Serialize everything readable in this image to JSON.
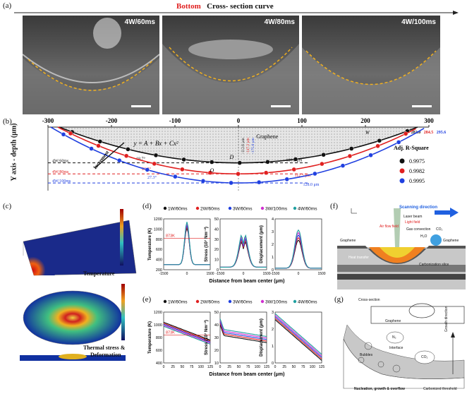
{
  "panel_a": {
    "label": "(a)",
    "title_bottom": "Bottom",
    "title_rest": "Cross- section curve",
    "images": [
      {
        "tag": "4W/60ms"
      },
      {
        "tag": "4W/80ms"
      },
      {
        "tag": "4W/100ms"
      }
    ]
  },
  "panel_b": {
    "label": "(b)",
    "ylabel": "Y axis - depth (μm)",
    "equation": "y = A + Bx + Cx²",
    "graphene": "Graphene",
    "increment": "Increment",
    "w_label": "W",
    "d_label": "D",
    "o_label": "O",
    "line_labels": [
      "4W/60ms",
      "4W/80ms",
      "4W/100ms"
    ],
    "angles": [
      "18.7°",
      "23.2°",
      "27.3°"
    ],
    "depth_labels": [
      "-112.6 μm",
      "-147.2 μm",
      "-175.8 μm"
    ],
    "widths": [
      "106.6 μm",
      "112.5 μm",
      "128.0 μm"
    ],
    "top_w": [
      "282.0",
      "284.5",
      "295.6"
    ],
    "legend_title": "Adj. R-Square",
    "legend_values": [
      "0.9975",
      "0.9982",
      "0.9995"
    ],
    "colors": [
      "#111111",
      "#e02020",
      "#2040e0"
    ]
  },
  "chart_data": {
    "type": "scatter",
    "title": "Cross- section curve",
    "xlabel": "",
    "ylabel": "Y axis - depth (μm)",
    "xlim": [
      -300,
      300
    ],
    "x_ticks": [
      "-300",
      "-200",
      "-100",
      "0",
      "100",
      "200",
      "300"
    ],
    "series": [
      {
        "name": "4W/60ms",
        "vertex_depth": -112.6,
        "half_width": 282.0
      },
      {
        "name": "4W/80ms",
        "vertex_depth": -147.2,
        "half_width": 284.5
      },
      {
        "name": "4W/100ms",
        "vertex_depth": -175.8,
        "half_width": 295.6
      }
    ]
  },
  "panel_c": {
    "label": "(c)",
    "temperature": "Temperature",
    "stress": "Thermal stress &",
    "deformation": "Deformation"
  },
  "panel_d": {
    "label": "(d)",
    "legend": [
      "1W/60ms",
      "2W/60ms",
      "3W/60ms",
      "3W/100ms",
      "4W/60ms"
    ],
    "legend_colors": [
      "#111111",
      "#e02020",
      "#2040e0",
      "#d030d0",
      "#20a0a0"
    ],
    "ylabels": [
      "Temperature (K)",
      "Stress (10⁷ Nm⁻²)",
      "Displacement (μm)"
    ],
    "xlabel": "Distance from beam center (μm)",
    "marker": "873K",
    "ticks_temp": [
      "1200",
      "1000",
      "800",
      "600",
      "400",
      "200"
    ],
    "ticks_stress": [
      "50",
      "40",
      "30",
      "20",
      "10",
      "0"
    ],
    "ticks_disp": [
      "4",
      "3",
      "2",
      "1",
      "0"
    ],
    "xticks": [
      "-1500",
      "0",
      "1500"
    ]
  },
  "panel_e": {
    "label": "(e)",
    "legend": [
      "1W/60ms",
      "2W/60ms",
      "3W/60ms",
      "3W/100ms",
      "4W/60ms"
    ],
    "legend_colors": [
      "#111111",
      "#e02020",
      "#2040e0",
      "#d030d0",
      "#20a0a0"
    ],
    "ylabels": [
      "Temperature (K)",
      "Stress (10⁷ Nm⁻²)",
      "Displacement (μm)"
    ],
    "xlabel": "Distance from beam center (μm)",
    "marker": "873K",
    "ticks_temp": [
      "1200",
      "1000",
      "800",
      "600",
      "400"
    ],
    "ticks_stress": [
      "50",
      "40",
      "30",
      "20",
      "10"
    ],
    "ticks_disp": [
      "3",
      "2",
      "1",
      "0"
    ],
    "xticks": [
      "0",
      "25",
      "50",
      "75",
      "100",
      "125"
    ]
  },
  "panel_f": {
    "label": "(f)",
    "scanning": "Scanning direction",
    "laser": "Laser beam",
    "air_flow": "Air flow field",
    "light": "Light field",
    "gas": "Gas convection",
    "graphene_l": "Graphene",
    "graphene_r": "Graphene",
    "heat": "Heat transfer",
    "carb": "Carbonization slice",
    "h2o": "H₂O",
    "co2": "CO₂"
  },
  "panel_g": {
    "label": "(g)",
    "cross": "Cross-section",
    "graphene": "Graphene",
    "n2": "N₂",
    "co2": "CO₂",
    "interface": "Interface",
    "bubbles": "Bubbles",
    "growth": "Growth direction",
    "nucleation": "Nucleation, growth & overflow",
    "carbonized": "Carbonized threshold"
  }
}
